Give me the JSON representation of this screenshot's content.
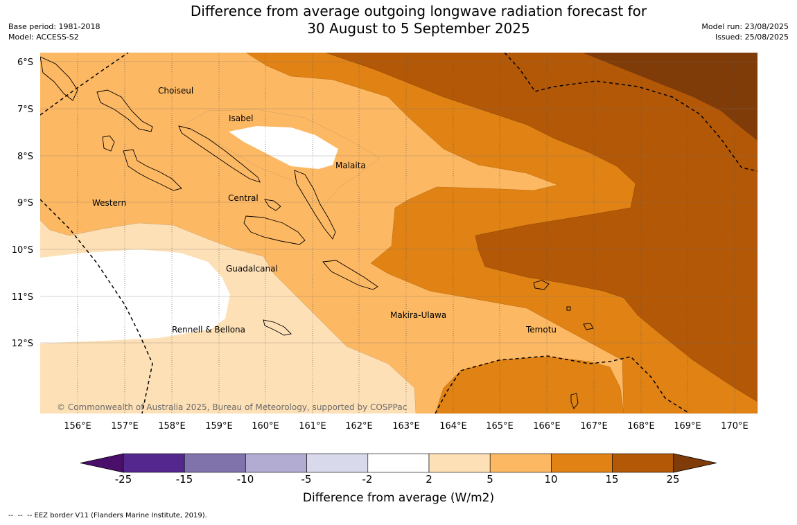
{
  "title": {
    "line1": "Difference from average outgoing longwave radiation forecast for",
    "line2": "30 August to 5 September 2025"
  },
  "meta": {
    "base_period": "Base period: 1981-2018",
    "model": "Model: ACCESS-S2",
    "model_run": "Model run: 23/08/2025",
    "issued": "Issued: 25/08/2025"
  },
  "map": {
    "lat_ticks": [
      "6°S",
      "7°S",
      "8°S",
      "9°S",
      "10°S",
      "11°S",
      "12°S"
    ],
    "lon_ticks": [
      "156°E",
      "157°E",
      "158°E",
      "159°E",
      "160°E",
      "161°E",
      "162°E",
      "163°E",
      "164°E",
      "165°E",
      "166°E",
      "167°E",
      "168°E",
      "169°E",
      "170°E"
    ],
    "region_labels": [
      "Choiseul",
      "Isabel",
      "Malaita",
      "Western",
      "Central",
      "Guadalcanal",
      "Makira-Ulawa",
      "Rennell & Bellona",
      "Temotu"
    ],
    "copyright": "© Commonwealth of Australia 2025, Bureau of Meteorology, supported by COSPPac"
  },
  "colorbar": {
    "ticks": [
      "-25",
      "-15",
      "-10",
      "-5",
      "-2",
      "2",
      "5",
      "10",
      "15",
      "25"
    ],
    "colors": [
      "#4a0f6b",
      "#54278f",
      "#8073ac",
      "#b2abd2",
      "#d8daeb",
      "#ffffff",
      "#fee0b6",
      "#fdb863",
      "#e08214",
      "#b35806",
      "#7f3b08"
    ],
    "title": "Difference from average (W/m2)"
  },
  "footer": {
    "eez_note": "--  --  -- EEZ border V11 (Flanders Marine Institute, 2019)."
  }
}
